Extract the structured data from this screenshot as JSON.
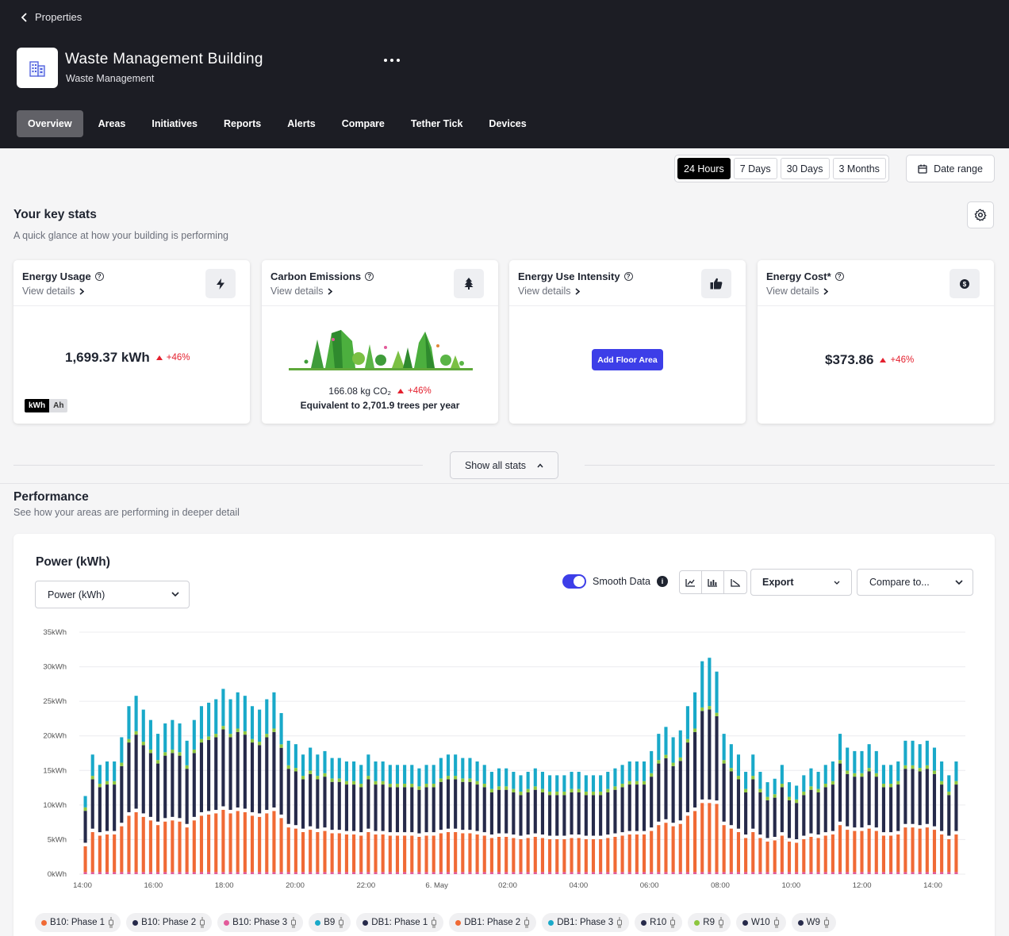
{
  "header": {
    "back_label": "Properties",
    "building_name": "Waste Management Building",
    "building_type": "Waste Management",
    "tabs": [
      "Overview",
      "Areas",
      "Initiatives",
      "Reports",
      "Alerts",
      "Compare",
      "Tether Tick",
      "Devices"
    ],
    "active_tab": "Overview"
  },
  "ranges": [
    "24 Hours",
    "7 Days",
    "30 Days",
    "3 Months"
  ],
  "date_range_label": "Date range",
  "key_stats": {
    "title": "Your key stats",
    "subtitle": "A quick glance at how your building is performing",
    "view_details": "View details",
    "energy": {
      "title": "Energy Usage",
      "value": "1,699.37 kWh",
      "delta": "+46%",
      "units": [
        "kWh",
        "Ah"
      ]
    },
    "carbon": {
      "title": "Carbon Emissions",
      "value": "166.08 kg CO₂",
      "delta": "+46%",
      "equivalent": "Equivalent to 2,701.9 trees per year"
    },
    "eui": {
      "title": "Energy Use Intensity",
      "button": "Add Floor Area"
    },
    "cost": {
      "title": "Energy Cost*",
      "value": "$373.86",
      "delta": "+46%"
    },
    "show_all": "Show all stats"
  },
  "performance": {
    "title": "Performance",
    "subtitle": "See how your areas are performing in deeper detail",
    "chart_title": "Power (kWh)",
    "metric_select": "Power (kWh)",
    "smooth_label": "Smooth Data",
    "export_label": "Export",
    "compare_label": "Compare to..."
  },
  "colors": {
    "orange": "#f06a35",
    "navy": "#262a4a",
    "cyan": "#19a9c9",
    "accent": "#3d3ee8",
    "negative": "#e4202e"
  },
  "chart_data": {
    "type": "bar",
    "stacked": true,
    "ylim": [
      0,
      35
    ],
    "yticks": [
      "0kWh",
      "5kWh",
      "10kWh",
      "15kWh",
      "20kWh",
      "25kWh",
      "30kWh",
      "35kWh"
    ],
    "xticks": [
      "14:00",
      "16:00",
      "18:00",
      "20:00",
      "22:00",
      "6. May",
      "02:00",
      "04:00",
      "06:00",
      "08:00",
      "10:00",
      "12:00",
      "14:00"
    ],
    "grid": true,
    "totals": [
      11,
      17,
      15.5,
      16,
      16,
      19.5,
      24,
      25.5,
      23.5,
      22,
      20,
      21.5,
      22,
      21.5,
      19,
      22,
      24,
      24.5,
      25,
      26.5,
      25,
      26,
      25.5,
      24,
      23.5,
      25,
      26,
      23,
      19,
      18.5,
      17,
      18,
      17,
      17.5,
      16.5,
      16.5,
      16,
      16,
      15.5,
      17,
      16,
      16,
      15.5,
      15.5,
      15.5,
      15.5,
      15,
      15.5,
      15.5,
      16.5,
      17,
      17,
      16.5,
      16.5,
      16,
      15.5,
      14.5,
      15,
      15,
      14.5,
      14,
      14.5,
      15,
      14.5,
      14,
      14,
      14,
      14.5,
      14.5,
      14,
      14,
      14,
      14.5,
      15,
      15.5,
      16,
      16,
      16,
      17.5,
      20,
      21,
      19.5,
      20.5,
      24,
      26,
      30.5,
      31,
      29,
      20,
      18.5,
      17,
      14.5,
      17,
      14.5,
      13,
      13.5,
      15.5,
      13,
      12.5,
      14,
      15,
      14.5,
      15.5,
      16,
      20,
      18,
      17.5,
      17.5,
      18.5,
      17.5,
      15.5,
      15.5,
      16,
      19,
      19,
      18.5,
      19,
      18,
      16,
      14,
      16
    ],
    "series": [
      {
        "name": "B10: Phase 1",
        "color": "#f06a35"
      },
      {
        "name": "B10: Phase 2",
        "color": "#262a4a"
      },
      {
        "name": "B10: Phase 3",
        "color": "#e25a9a"
      },
      {
        "name": "B9",
        "color": "#19a9c9"
      },
      {
        "name": "DB1: Phase 1",
        "color": "#262a4a"
      },
      {
        "name": "DB1: Phase 2",
        "color": "#f06a35"
      },
      {
        "name": "DB1: Phase 3",
        "color": "#19a9c9"
      },
      {
        "name": "R10",
        "color": "#262a4a"
      },
      {
        "name": "R9",
        "color": "#8dc63f"
      },
      {
        "name": "W10",
        "color": "#262a4a"
      },
      {
        "name": "W9",
        "color": "#262a4a"
      }
    ]
  }
}
